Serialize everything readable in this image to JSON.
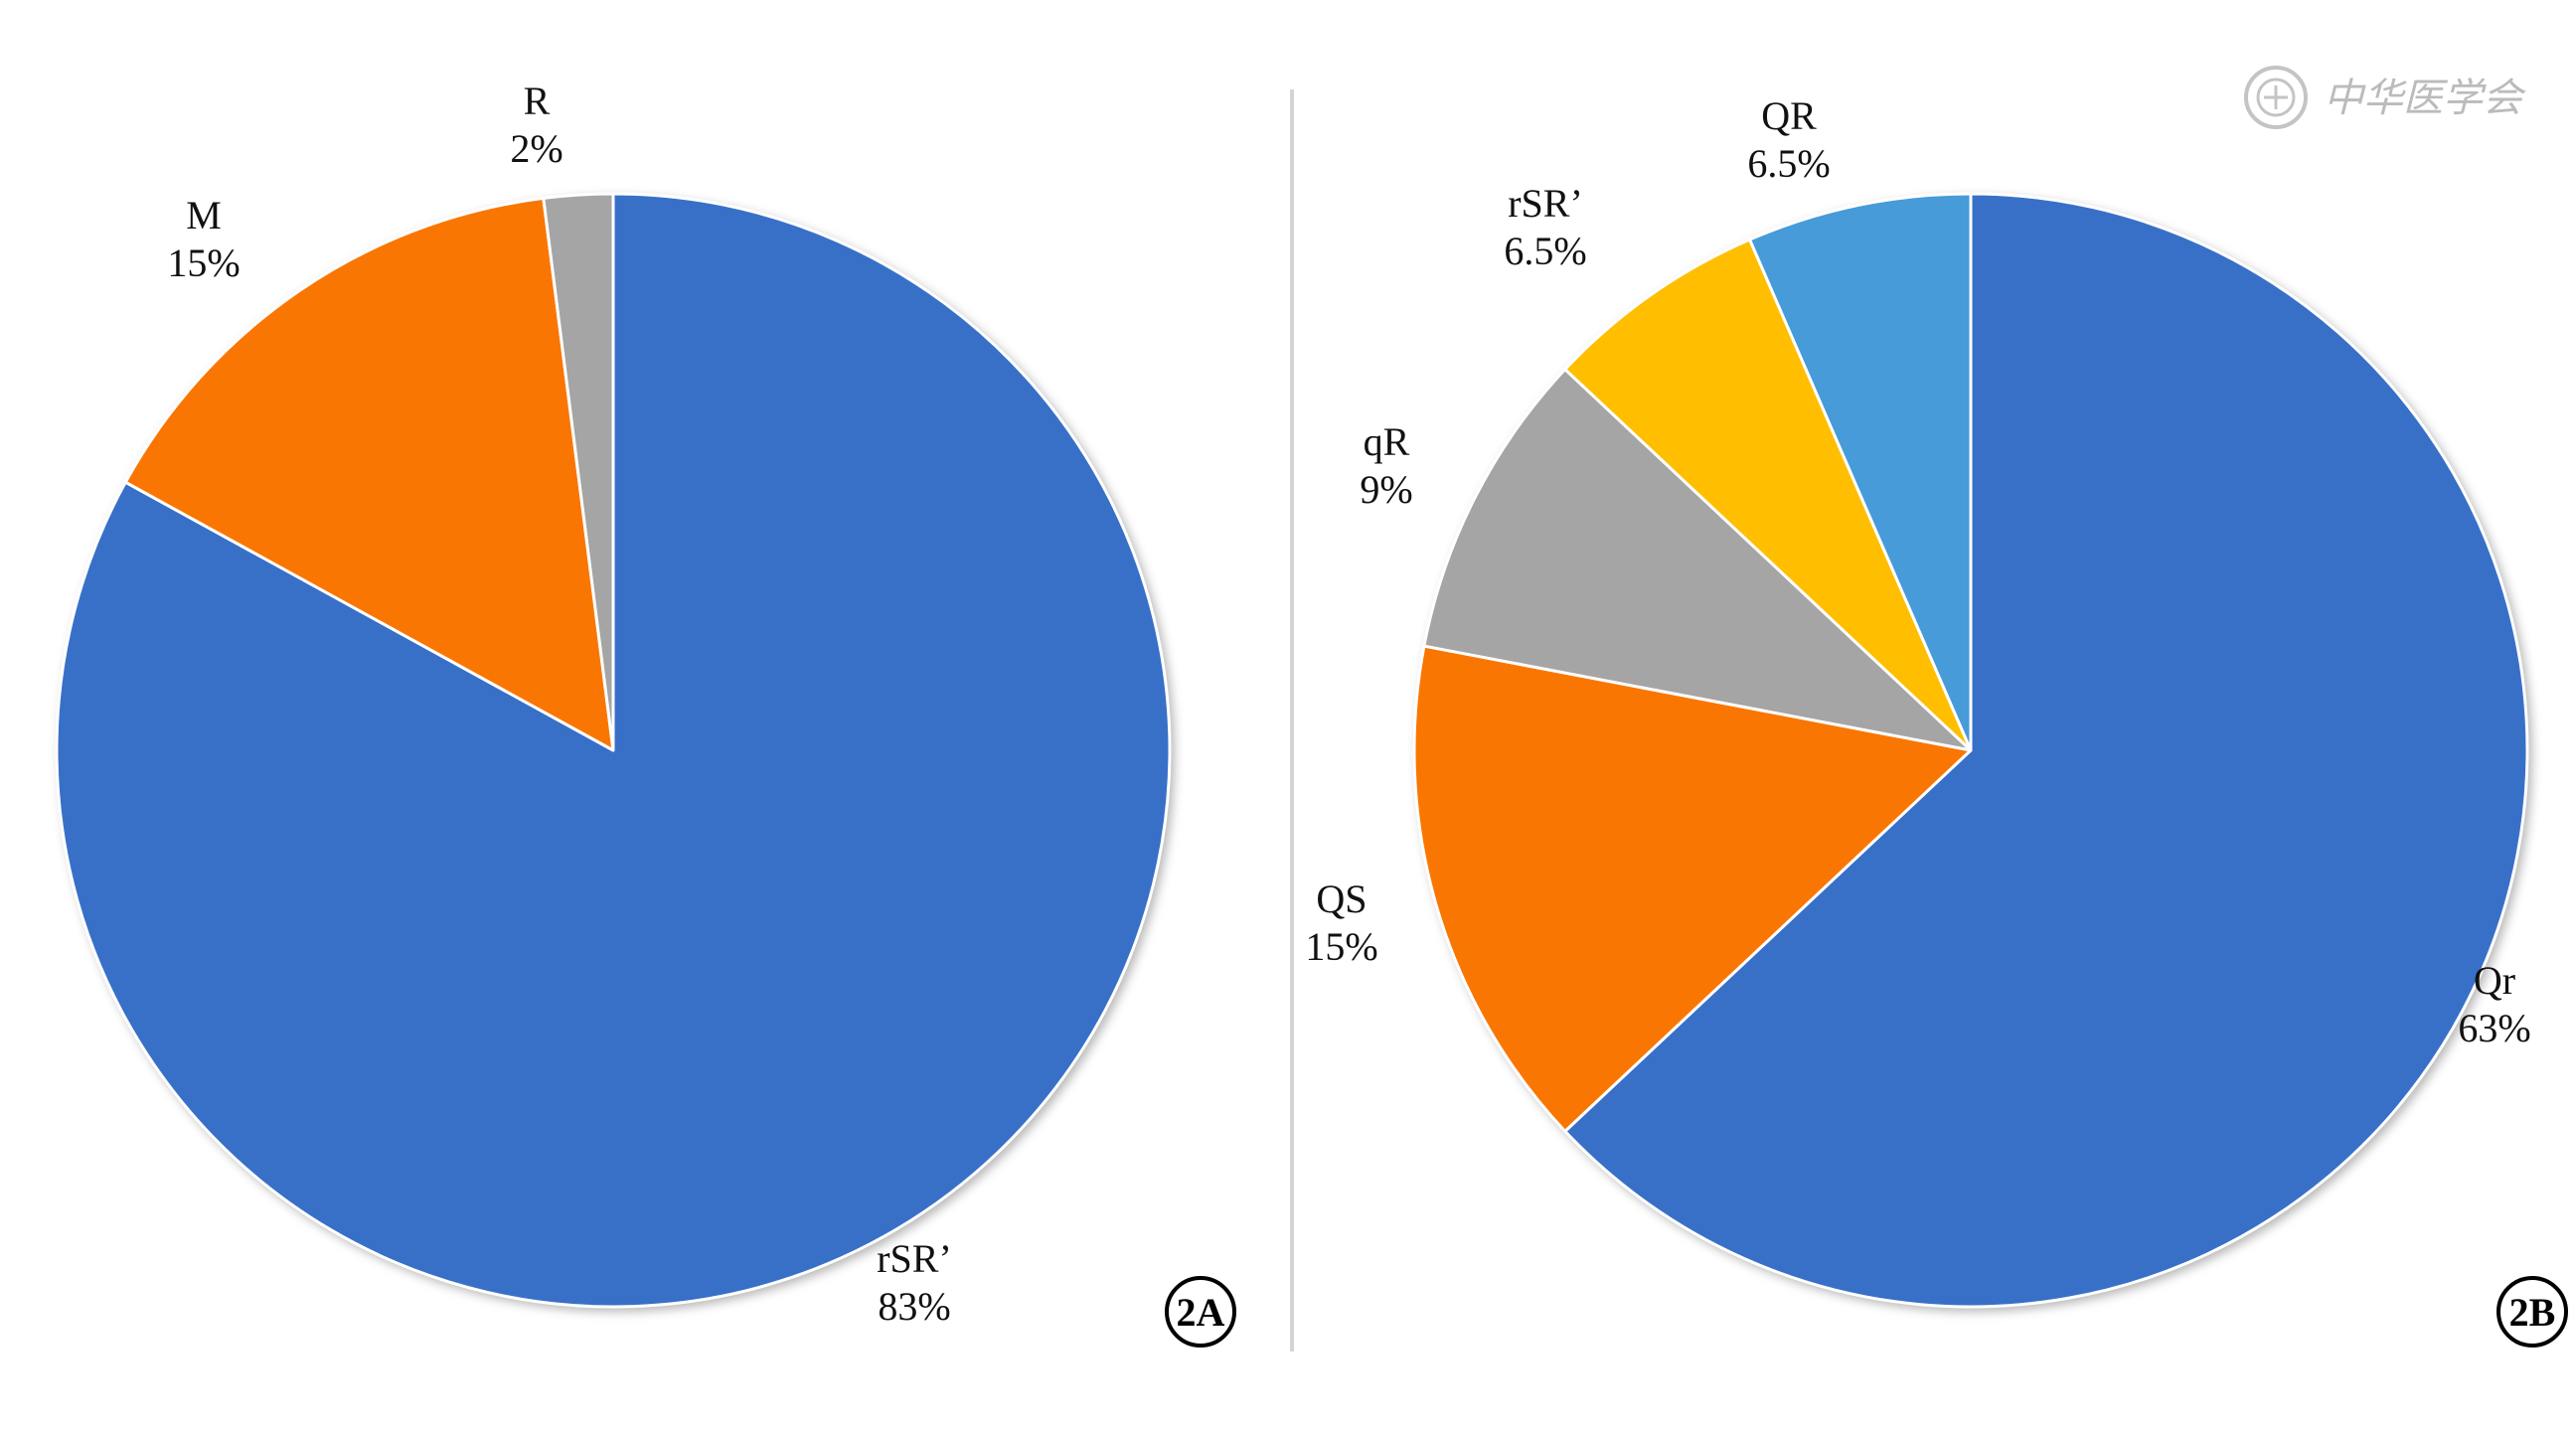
{
  "chart_data": [
    {
      "type": "pie",
      "panel_label": "2A",
      "slices": [
        {
          "label": "rSR’",
          "value": 83,
          "value_label": "83%",
          "color": "#3870C8"
        },
        {
          "label": "M",
          "value": 15,
          "value_label": "15%",
          "color": "#FA7602"
        },
        {
          "label": "R",
          "value": 2,
          "value_label": "2%",
          "color": "#A5A5A5"
        }
      ]
    },
    {
      "type": "pie",
      "panel_label": "2B",
      "slices": [
        {
          "label": "Qr",
          "value": 63,
          "value_label": "63%",
          "color": "#3870C8"
        },
        {
          "label": "QS",
          "value": 15,
          "value_label": "15%",
          "color": "#FA7602"
        },
        {
          "label": "qR",
          "value": 9,
          "value_label": "9%",
          "color": "#A5A5A5"
        },
        {
          "label": "rSR’",
          "value": 6.5,
          "value_label": "6.5%",
          "color": "#FFBE00"
        },
        {
          "label": "QR",
          "value": 6.5,
          "value_label": "6.5%",
          "color": "#469BD8"
        }
      ]
    }
  ],
  "watermark": {
    "text": "中华医学会",
    "icon": "society-seal-icon"
  }
}
